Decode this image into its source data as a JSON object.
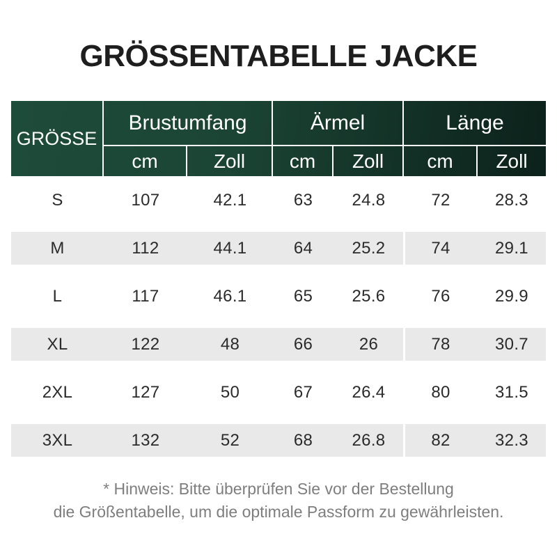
{
  "title": "GRÖSSENTABELLE JACKE",
  "colors": {
    "header_text": "#ffffff",
    "body_text": "#2b2b2b",
    "footnote_text": "#7e7e7e",
    "stripe": "#e9e9e9",
    "header_gradient": [
      "#1e4c3a",
      "#1b4434",
      "#0c211b"
    ]
  },
  "table": {
    "header": {
      "size_label": "GRÖSSE",
      "groups": [
        {
          "label": "Brustumfang",
          "units": [
            "cm",
            "Zoll"
          ]
        },
        {
          "label": "Ärmel",
          "units": [
            "cm",
            "Zoll"
          ]
        },
        {
          "label": "Länge",
          "units": [
            "cm",
            "Zoll"
          ]
        }
      ]
    },
    "rows": [
      {
        "size": "S",
        "striped": false,
        "values": [
          "107",
          "42.1",
          "63",
          "24.8",
          "72",
          "28.3"
        ]
      },
      {
        "size": "M",
        "striped": true,
        "values": [
          "112",
          "44.1",
          "64",
          "25.2",
          "74",
          "29.1"
        ]
      },
      {
        "size": "L",
        "striped": false,
        "values": [
          "117",
          "46.1",
          "65",
          "25.6",
          "76",
          "29.9"
        ]
      },
      {
        "size": "XL",
        "striped": true,
        "values": [
          "122",
          "48",
          "66",
          "26",
          "78",
          "30.7"
        ]
      },
      {
        "size": "2XL",
        "striped": false,
        "values": [
          "127",
          "50",
          "67",
          "26.4",
          "80",
          "31.5"
        ]
      },
      {
        "size": "3XL",
        "striped": true,
        "values": [
          "132",
          "52",
          "68",
          "26.8",
          "82",
          "32.3"
        ]
      }
    ]
  },
  "footnote": {
    "line1": "* Hinweis: Bitte überprüfen Sie vor der Bestellung",
    "line2": "die Größentabelle, um die optimale Passform zu gewährleisten."
  },
  "chart_data": {
    "type": "table",
    "title": "GRÖSSENTABELLE JACKE",
    "columns": [
      "GRÖSSE",
      "Brustumfang cm",
      "Brustumfang Zoll",
      "Ärmel cm",
      "Ärmel Zoll",
      "Länge cm",
      "Länge Zoll"
    ],
    "rows": [
      [
        "S",
        107,
        42.1,
        63,
        24.8,
        72,
        28.3
      ],
      [
        "M",
        112,
        44.1,
        64,
        25.2,
        74,
        29.1
      ],
      [
        "L",
        117,
        46.1,
        65,
        25.6,
        76,
        29.9
      ],
      [
        "XL",
        122,
        48,
        66,
        26,
        78,
        30.7
      ],
      [
        "2XL",
        127,
        50,
        67,
        26.4,
        80,
        31.5
      ],
      [
        "3XL",
        132,
        52,
        68,
        26.8,
        82,
        32.3
      ]
    ],
    "note": "* Hinweis: Bitte überprüfen Sie vor der Bestellung die Größentabelle, um die optimale Passform zu gewährleisten."
  }
}
